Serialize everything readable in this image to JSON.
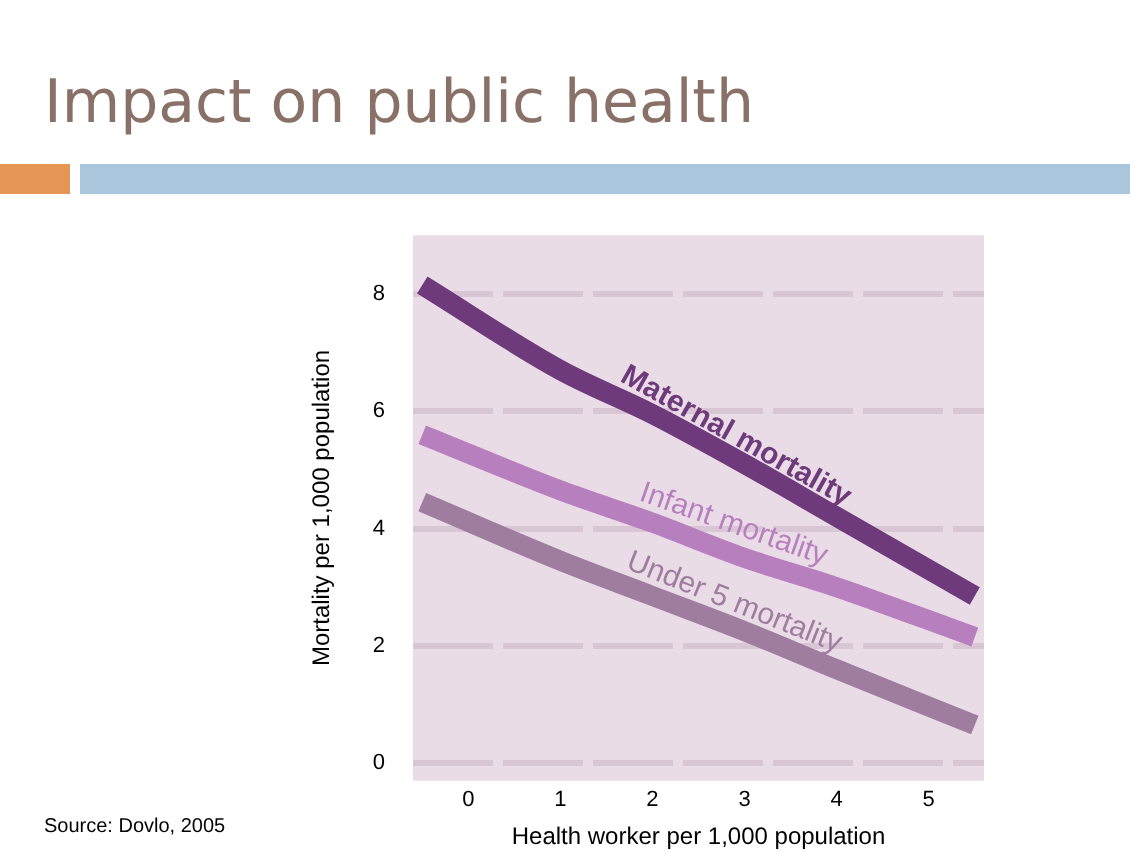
{
  "chart_data": {
    "type": "line",
    "title": "Impact on public health",
    "xlabel": "Health worker per 1,000 population",
    "ylabel": "Mortality per 1,000 population",
    "x": [
      -0.5,
      1,
      2,
      3,
      4,
      5.5
    ],
    "series": [
      {
        "name": "Maternal mortality",
        "color": "#6e3a7c",
        "values": [
          8.15,
          6.7,
          5.95,
          5.1,
          4.2,
          2.85
        ]
      },
      {
        "name": "Infant mortality",
        "color": "#b87fbf",
        "values": [
          5.6,
          4.65,
          4.1,
          3.5,
          3.0,
          2.15
        ]
      },
      {
        "name": "Under 5 mortality",
        "color": "#9e7d9e",
        "values": [
          4.45,
          3.45,
          2.85,
          2.25,
          1.6,
          0.65
        ]
      }
    ],
    "xlim": [
      -0.6,
      5.6
    ],
    "xticks": [
      0,
      1,
      2,
      3,
      4,
      5
    ],
    "ylim": [
      -0.3,
      9
    ],
    "yticks": [
      0,
      2,
      4,
      6,
      8
    ],
    "grid": "y",
    "legend": false,
    "marker": "none",
    "line_style": "solid",
    "annotations": [
      "Source: Dovlo, 2005"
    ]
  }
}
